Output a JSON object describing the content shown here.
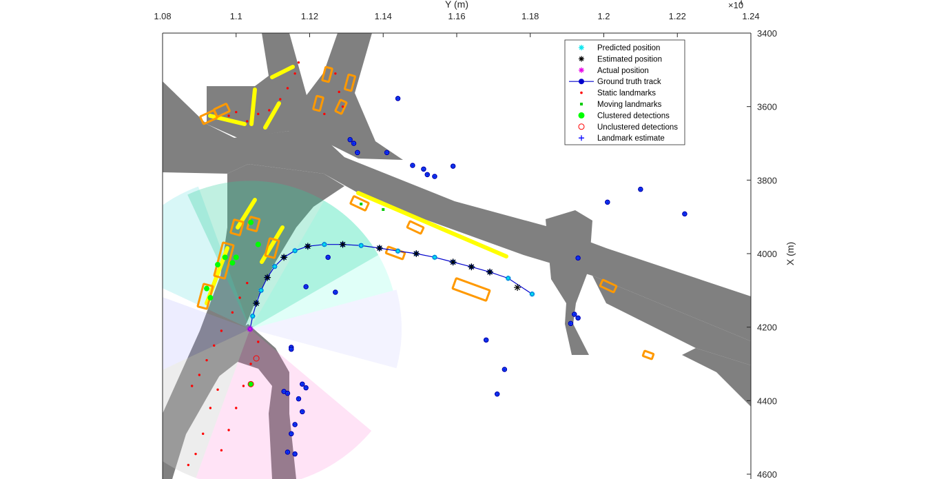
{
  "chart_data": {
    "type": "scatter",
    "title": "",
    "xlabel": "Y (m)",
    "ylabel": "X (m)",
    "x_exponent_label": "×10",
    "x_exponent_power": "4",
    "xlim": [
      1.08,
      1.24
    ],
    "ylim": [
      3400,
      4600
    ],
    "y_reversed": true,
    "x_axis_location": "top",
    "y_axis_location": "right",
    "grid": false,
    "legend_position": "top-right",
    "x_ticks": [
      "1.08",
      "1.1",
      "1.12",
      "1.14",
      "1.16",
      "1.18",
      "1.2",
      "1.22",
      "1.24"
    ],
    "y_ticks": [
      "3400",
      "3600",
      "3800",
      "4000",
      "4200",
      "4400",
      "4600"
    ],
    "colors": {
      "road": "#808080",
      "predicted": "#00e5ee",
      "estimated": "#000000",
      "actual": "#e600e6",
      "track": "#0000cc",
      "static_landmark": "#ff0000",
      "moving_landmark": "#00cc00",
      "clustered": "#00ff00",
      "unclustered": "#ff0000",
      "landmark_estimate": "#0000ff",
      "vehicle_box": "#ff9900",
      "highlight": "#ffff00"
    },
    "legend": [
      {
        "label": "Predicted position",
        "marker": "star",
        "color": "#00e5ee"
      },
      {
        "label": "Estimated position",
        "marker": "star",
        "color": "#000000"
      },
      {
        "label": "Actual position",
        "marker": "star",
        "color": "#e600e6"
      },
      {
        "label": "Ground truth track",
        "marker": "line-dot",
        "color": "#0000cc"
      },
      {
        "label": "Static landmarks",
        "marker": "dot",
        "color": "#ff0000"
      },
      {
        "label": "Moving landmarks",
        "marker": "square",
        "color": "#00cc00"
      },
      {
        "label": "Clustered detections",
        "marker": "filled-circle",
        "color": "#00ff00"
      },
      {
        "label": "Unclustered detections",
        "marker": "open-circle",
        "color": "#ff0000"
      },
      {
        "label": "Landmark estimate",
        "marker": "plus",
        "color": "#0000ff"
      }
    ],
    "ground_truth_track": [
      [
        1.1038,
        4205
      ],
      [
        1.1045,
        4170
      ],
      [
        1.1055,
        4135
      ],
      [
        1.1068,
        4100
      ],
      [
        1.1085,
        4065
      ],
      [
        1.1105,
        4035
      ],
      [
        1.113,
        4010
      ],
      [
        1.116,
        3992
      ],
      [
        1.1195,
        3980
      ],
      [
        1.124,
        3975
      ],
      [
        1.129,
        3975
      ],
      [
        1.134,
        3978
      ],
      [
        1.139,
        3985
      ],
      [
        1.144,
        3993
      ],
      [
        1.149,
        4000
      ],
      [
        1.154,
        4010
      ],
      [
        1.159,
        4023
      ],
      [
        1.164,
        4036
      ],
      [
        1.169,
        4050
      ],
      [
        1.174,
        4067
      ],
      [
        1.1805,
        4110
      ]
    ],
    "estimated_positions": [
      [
        1.1055,
        4135
      ],
      [
        1.1085,
        4065
      ],
      [
        1.113,
        4010
      ],
      [
        1.1195,
        3980
      ],
      [
        1.129,
        3975
      ],
      [
        1.139,
        3985
      ],
      [
        1.149,
        4000
      ],
      [
        1.159,
        4023
      ],
      [
        1.164,
        4036
      ],
      [
        1.169,
        4050
      ],
      [
        1.1765,
        4092
      ]
    ],
    "actual_position": [
      1.1038,
      4205
    ],
    "static_landmarks": [
      [
        1.087,
        4575
      ],
      [
        1.089,
        4545
      ],
      [
        1.091,
        4490
      ],
      [
        1.093,
        4420
      ],
      [
        1.095,
        4370
      ],
      [
        1.088,
        4360
      ],
      [
        1.09,
        4330
      ],
      [
        1.092,
        4290
      ],
      [
        1.094,
        4250
      ],
      [
        1.096,
        4210
      ],
      [
        1.099,
        4160
      ],
      [
        1.101,
        4120
      ],
      [
        1.103,
        4080
      ],
      [
        1.096,
        4535
      ],
      [
        1.098,
        4480
      ],
      [
        1.1,
        4420
      ],
      [
        1.102,
        4360
      ],
      [
        1.104,
        4300
      ],
      [
        1.106,
        4240
      ],
      [
        1.098,
        3625
      ],
      [
        1.1,
        3615
      ],
      [
        1.103,
        3640
      ],
      [
        1.106,
        3620
      ],
      [
        1.109,
        3610
      ],
      [
        1.112,
        3580
      ],
      [
        1.114,
        3550
      ],
      [
        1.116,
        3510
      ],
      [
        1.117,
        3480
      ],
      [
        1.127,
        3510
      ],
      [
        1.128,
        3560
      ],
      [
        1.129,
        3600
      ],
      [
        1.124,
        3620
      ]
    ],
    "moving_landmarks": [
      [
        1.134,
        3865
      ],
      [
        1.14,
        3880
      ]
    ],
    "clustered_detections": [
      [
        1.092,
        4095
      ],
      [
        1.093,
        4120
      ],
      [
        1.095,
        4030
      ],
      [
        1.097,
        4010
      ],
      [
        1.099,
        4025
      ],
      [
        1.1,
        4010
      ],
      [
        1.104,
        3915
      ],
      [
        1.106,
        3975
      ],
      [
        1.104,
        4355
      ]
    ],
    "unclustered_detections": [
      [
        1.1055,
        4285
      ],
      [
        1.104,
        4355
      ]
    ],
    "landmark_estimates": [
      [
        1.144,
        3578
      ],
      [
        1.141,
        3725
      ],
      [
        1.148,
        3760
      ],
      [
        1.151,
        3770
      ],
      [
        1.152,
        3785
      ],
      [
        1.154,
        3790
      ],
      [
        1.159,
        3762
      ],
      [
        1.201,
        3860
      ],
      [
        1.21,
        3825
      ],
      [
        1.222,
        3892
      ],
      [
        1.193,
        4012
      ],
      [
        1.191,
        4190
      ],
      [
        1.193,
        4175
      ],
      [
        1.192,
        4165
      ],
      [
        1.168,
        4235
      ],
      [
        1.173,
        4315
      ],
      [
        1.171,
        4382
      ],
      [
        1.131,
        3690
      ],
      [
        1.132,
        3700
      ],
      [
        1.133,
        3725
      ],
      [
        1.115,
        4255
      ],
      [
        1.115,
        4260
      ],
      [
        1.118,
        4355
      ],
      [
        1.119,
        4365
      ],
      [
        1.117,
        4395
      ],
      [
        1.118,
        4430
      ],
      [
        1.116,
        4465
      ],
      [
        1.115,
        4490
      ],
      [
        1.116,
        4545
      ],
      [
        1.114,
        4540
      ],
      [
        1.113,
        4375
      ],
      [
        1.114,
        4380
      ],
      [
        1.125,
        4010
      ],
      [
        1.127,
        4105
      ],
      [
        1.119,
        4090
      ]
    ]
  }
}
